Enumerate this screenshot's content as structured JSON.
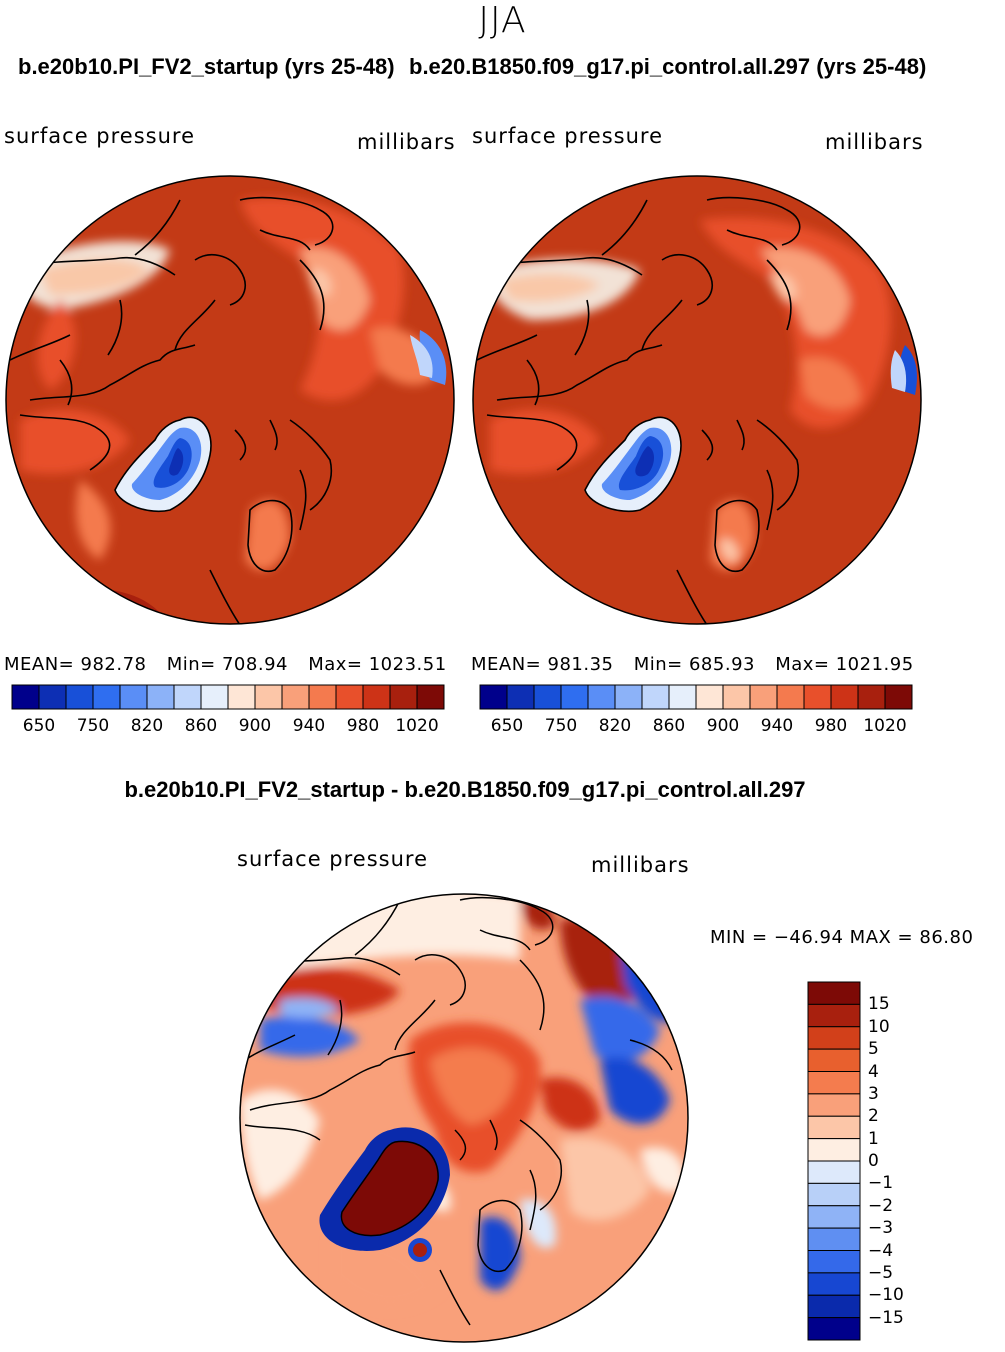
{
  "season": "JJA",
  "panel_left": {
    "case_title": "b.e20b10.PI_FV2_startup (yrs 25-48)",
    "variable": "surface pressure",
    "units": "millibars",
    "stats": {
      "mean_label": "MEAN=",
      "mean": "982.78",
      "min_label": "Min=",
      "min": "708.94",
      "max_label": "Max=",
      "max": "1023.51"
    }
  },
  "panel_right": {
    "case_title": "b.e20.B1850.f09_g17.pi_control.all.297 (yrs 25-48)",
    "variable": "surface pressure",
    "units": "millibars",
    "stats": {
      "mean_label": "MEAN=",
      "mean": "981.35",
      "min_label": "Min=",
      "min": "685.93",
      "max_label": "Max=",
      "max": "1021.95"
    }
  },
  "panel_diff": {
    "title": "b.e20b10.PI_FV2_startup - b.e20.B1850.f09_g17.pi_control.all.297",
    "variable": "surface pressure",
    "units": "millibars",
    "minmax_text": "MIN = −46.94 MAX =  86.80"
  },
  "colorbar_abs": {
    "tick_labels": [
      "650",
      "750",
      "820",
      "860",
      "900",
      "940",
      "980",
      "1020"
    ],
    "colors": [
      "#00008b",
      "#0d2fb4",
      "#1850d8",
      "#2f6ef0",
      "#5a8ef6",
      "#8cb2f8",
      "#c0d6fb",
      "#e6effb",
      "#fee6d6",
      "#fcc6a8",
      "#f9a07a",
      "#f47a4e",
      "#e8502b",
      "#cd3317",
      "#a8200e",
      "#7d0a06"
    ]
  },
  "colorbar_diff": {
    "tick_labels": [
      "15",
      "10",
      "5",
      "4",
      "3",
      "2",
      "1",
      "0",
      "−1",
      "−2",
      "−3",
      "−4",
      "−5",
      "−10",
      "−15"
    ],
    "colors": [
      "#7d0a06",
      "#a8200e",
      "#d2401a",
      "#e8602e",
      "#f47c4e",
      "#f9a07a",
      "#fcc6a8",
      "#feeee2",
      "#dde9fb",
      "#b8d0f8",
      "#8fb3f6",
      "#5f8ff2",
      "#3469ea",
      "#1747d2",
      "#0a2aac",
      "#00008b"
    ]
  },
  "map_colors": {
    "ocean": "#c33a16",
    "greenland_mid": "#1a4fd6",
    "greenland_core": "#0d2fb4",
    "diff_background": "#f9a07a"
  }
}
